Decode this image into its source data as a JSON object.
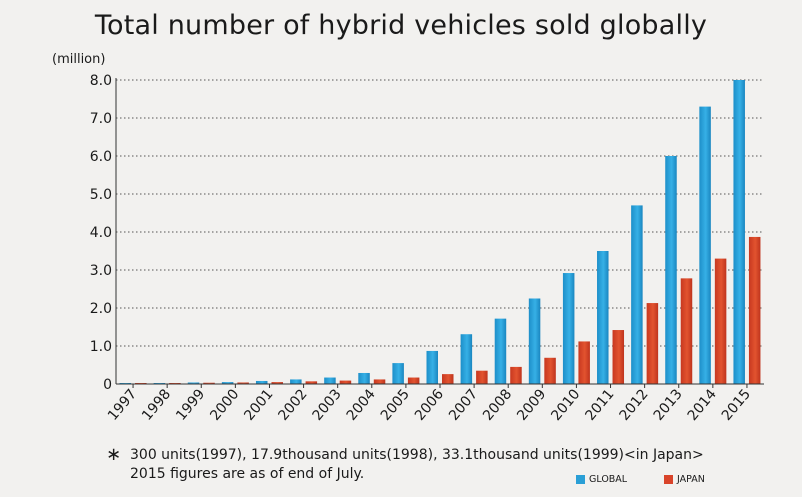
{
  "chart_data": {
    "type": "bar",
    "title": "Total number of hybrid vehicles sold globally",
    "ylabel": "(million)",
    "xlabel": "",
    "ylim": [
      0,
      8
    ],
    "yticks": [
      "0",
      "1.0",
      "2.0",
      "3.0",
      "4.0",
      "5.0",
      "6.0",
      "7.0",
      "8.0"
    ],
    "grid": true,
    "legend_position": "bottom-right",
    "categories": [
      "1997",
      "1998",
      "1999",
      "2000",
      "2001",
      "2002",
      "2003",
      "2004",
      "2005",
      "2006",
      "2007",
      "2008",
      "2009",
      "2010",
      "2011",
      "2012",
      "2013",
      "2014",
      "2015"
    ],
    "series": [
      {
        "name": "GLOBAL",
        "color": "#2a9fd6",
        "values": [
          0.0003,
          0.02,
          0.04,
          0.05,
          0.08,
          0.12,
          0.17,
          0.29,
          0.55,
          0.87,
          1.31,
          1.72,
          2.25,
          2.92,
          3.5,
          4.7,
          6.0,
          7.3,
          8.0
        ]
      },
      {
        "name": "JAPAN",
        "color": "#d9442a",
        "values": [
          0.0003,
          0.0179,
          0.0331,
          0.04,
          0.05,
          0.07,
          0.09,
          0.12,
          0.17,
          0.26,
          0.35,
          0.45,
          0.69,
          1.12,
          1.42,
          2.13,
          2.78,
          3.3,
          3.87
        ]
      }
    ]
  },
  "notes": {
    "star": "∗",
    "line1": "300 units(1997), 17.9thousand units(1998), 33.1thousand units(1999)<in Japan>",
    "line2": "2015 figures are as of end of July."
  },
  "legend": {
    "global_label": "GLOBAL",
    "japan_label": "JAPAN"
  },
  "colors": {
    "global": "#2a9fd6",
    "japan": "#d9442a",
    "background": "#f2f1ef"
  }
}
